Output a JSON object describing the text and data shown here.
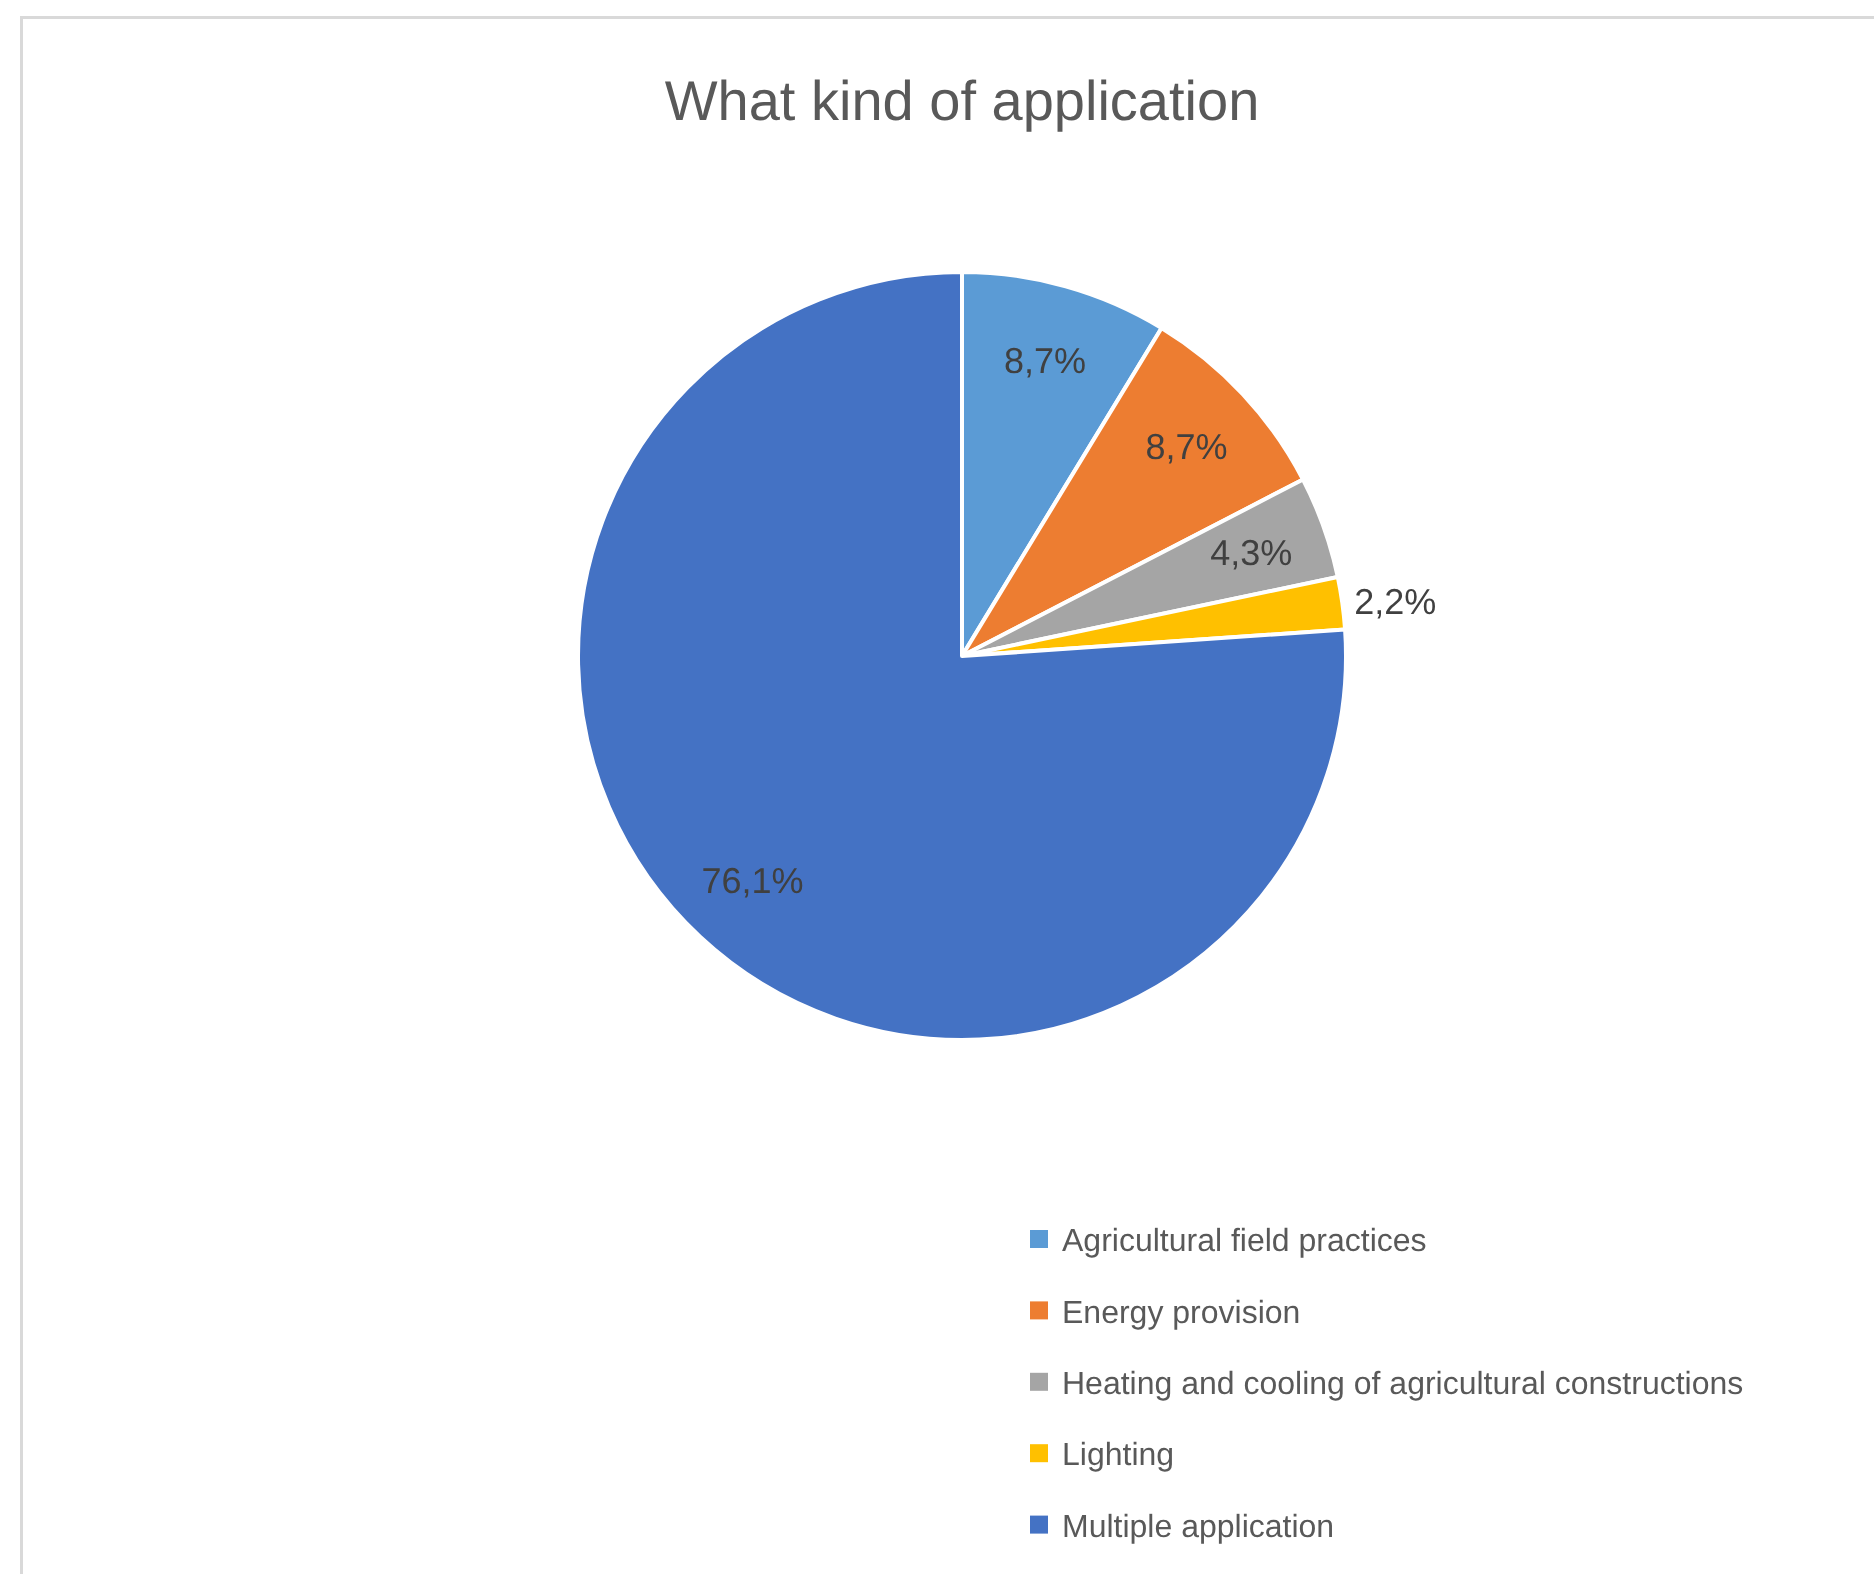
{
  "chart_data": {
    "type": "pie",
    "title": "What kind of application",
    "categories": [
      "Agricultural field practices",
      "Energy provision",
      "Heating and cooling of agricultural constructions",
      "Lighting",
      "Multiple application"
    ],
    "values": [
      8.7,
      8.7,
      4.3,
      2.2,
      76.1
    ],
    "colors": [
      "#5b9bd5",
      "#ed7d31",
      "#a5a5a5",
      "#ffc000",
      "#4472c4"
    ],
    "value_labels": [
      "8,7%",
      "8,7%",
      "4,3%",
      "2,2%",
      "76,1%"
    ],
    "legend": "bottom right"
  }
}
